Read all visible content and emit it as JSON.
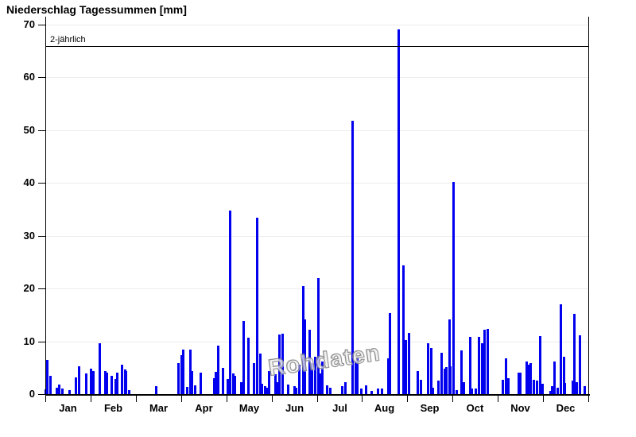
{
  "chart_data": {
    "type": "bar",
    "title": "Niederschlag Tagessummen [mm]",
    "xlabel": "",
    "ylabel": "",
    "watermark": "Rohdaten",
    "y_axis": {
      "min": 0,
      "max": 70,
      "tick_step": 10,
      "ticks": [
        0,
        10,
        20,
        30,
        40,
        50,
        60,
        70
      ],
      "grid": true
    },
    "x_axis": {
      "unit": "day_of_year",
      "range": [
        1,
        365
      ],
      "month_labels": [
        "Jan",
        "Feb",
        "Mar",
        "Apr",
        "May",
        "Jun",
        "Jul",
        "Aug",
        "Sep",
        "Oct",
        "Nov",
        "Dec"
      ]
    },
    "threshold_line": {
      "label": "2-jährlich",
      "value_mm": 66
    },
    "colors": {
      "bar": "#0000ee",
      "grid": "#ececec",
      "axis": "#000000",
      "threshold": "#000000",
      "watermark_outline": "#828282"
    },
    "legend": {
      "visible": false
    },
    "series": [
      {
        "name": "Niederschlag Tagessummen",
        "unit": "mm",
        "points": [
          [
            1,
            0.9
          ],
          [
            2,
            6.4
          ],
          [
            4,
            3.5
          ],
          [
            8,
            1.2
          ],
          [
            10,
            1.8
          ],
          [
            12,
            1.1
          ],
          [
            17,
            0.7
          ],
          [
            21,
            3.2
          ],
          [
            23,
            5.3
          ],
          [
            28,
            3.9
          ],
          [
            31,
            4.8
          ],
          [
            33,
            4.3
          ],
          [
            37,
            9.7
          ],
          [
            41,
            4.4
          ],
          [
            42,
            4.1
          ],
          [
            45,
            3.4
          ],
          [
            48,
            2.9
          ],
          [
            49,
            4.0
          ],
          [
            52,
            5.5
          ],
          [
            54,
            4.6
          ],
          [
            55,
            4.4
          ],
          [
            57,
            0.8
          ],
          [
            75,
            1.5
          ],
          [
            90,
            5.9
          ],
          [
            92,
            7.4
          ],
          [
            93,
            8.4
          ],
          [
            96,
            1.3
          ],
          [
            98,
            8.5
          ],
          [
            99,
            4.4
          ],
          [
            101,
            1.7
          ],
          [
            105,
            4.0
          ],
          [
            114,
            3.0
          ],
          [
            115,
            4.2
          ],
          [
            117,
            9.2
          ],
          [
            120,
            5.0
          ],
          [
            123,
            2.9
          ],
          [
            125,
            34.8
          ],
          [
            127,
            3.9
          ],
          [
            128,
            3.5
          ],
          [
            132,
            2.3
          ],
          [
            134,
            13.8
          ],
          [
            137,
            10.7
          ],
          [
            141,
            5.9
          ],
          [
            143,
            33.4
          ],
          [
            145,
            7.7
          ],
          [
            146,
            2.0
          ],
          [
            148,
            1.5
          ],
          [
            150,
            1.2
          ],
          [
            151,
            4.3
          ],
          [
            155,
            3.7
          ],
          [
            157,
            2.2
          ],
          [
            158,
            11.3
          ],
          [
            160,
            11.5
          ],
          [
            164,
            1.8
          ],
          [
            168,
            1.5
          ],
          [
            169,
            1.2
          ],
          [
            171,
            5.5
          ],
          [
            174,
            20.5
          ],
          [
            175,
            14.2
          ],
          [
            178,
            12.2
          ],
          [
            180,
            5.9
          ],
          [
            182,
            7.1
          ],
          [
            184,
            22.0
          ],
          [
            185,
            3.9
          ],
          [
            187,
            6.2
          ],
          [
            190,
            1.6
          ],
          [
            192,
            1.2
          ],
          [
            200,
            1.5
          ],
          [
            202,
            2.2
          ],
          [
            207,
            51.8
          ],
          [
            209,
            6.3
          ],
          [
            210,
            6.9
          ],
          [
            213,
            1.1
          ],
          [
            216,
            1.7
          ],
          [
            220,
            0.6
          ],
          [
            224,
            1.0
          ],
          [
            227,
            1.0
          ],
          [
            231,
            6.8
          ],
          [
            232,
            15.4
          ],
          [
            238,
            69.1
          ],
          [
            241,
            24.4
          ],
          [
            243,
            10.2
          ],
          [
            245,
            11.6
          ],
          [
            251,
            4.4
          ],
          [
            253,
            2.7
          ],
          [
            258,
            9.7
          ],
          [
            260,
            8.8
          ],
          [
            261,
            1.2
          ],
          [
            265,
            2.5
          ],
          [
            267,
            7.9
          ],
          [
            269,
            4.8
          ],
          [
            270,
            5.1
          ],
          [
            272,
            14.2
          ],
          [
            273,
            5.2
          ],
          [
            275,
            40.2
          ],
          [
            277,
            0.8
          ],
          [
            280,
            8.3
          ],
          [
            282,
            2.3
          ],
          [
            286,
            10.8
          ],
          [
            287,
            1.0
          ],
          [
            290,
            1.0
          ],
          [
            292,
            10.9
          ],
          [
            294,
            9.6
          ],
          [
            296,
            12.2
          ],
          [
            298,
            12.4
          ],
          [
            308,
            2.7
          ],
          [
            310,
            6.8
          ],
          [
            312,
            3.0
          ],
          [
            319,
            4.0
          ],
          [
            320,
            4.1
          ],
          [
            324,
            6.2
          ],
          [
            325,
            5.6
          ],
          [
            327,
            5.9
          ],
          [
            329,
            2.7
          ],
          [
            331,
            2.5
          ],
          [
            333,
            11.0
          ],
          [
            335,
            2.0
          ],
          [
            340,
            0.6
          ],
          [
            341,
            1.5
          ],
          [
            343,
            6.1
          ],
          [
            345,
            1.2
          ],
          [
            347,
            17.0
          ],
          [
            349,
            7.0
          ],
          [
            350,
            2.1
          ],
          [
            355,
            2.5
          ],
          [
            356,
            15.2
          ],
          [
            358,
            2.2
          ],
          [
            360,
            11.2
          ],
          [
            363,
            1.5
          ]
        ]
      }
    ]
  }
}
